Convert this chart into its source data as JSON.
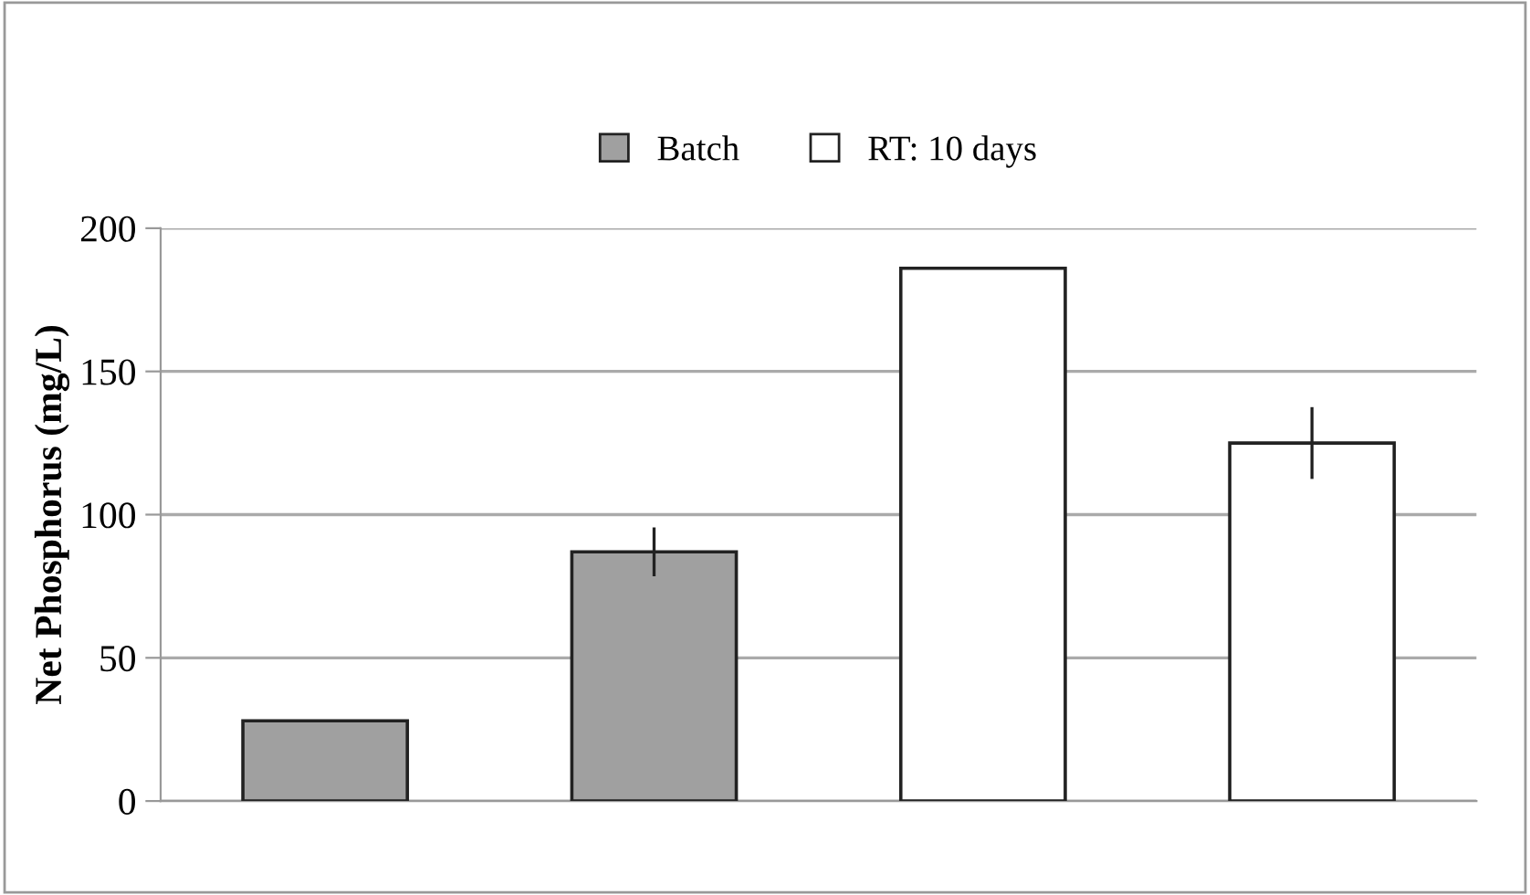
{
  "chart_data": {
    "type": "bar",
    "ylabel": "Net Phosphorus (mg/L)",
    "categories": [
      null,
      null,
      null,
      null
    ],
    "series": [
      {
        "name": "Batch",
        "color": "#a0a0a0",
        "values": [
          28,
          87,
          null,
          null
        ],
        "errors": [
          null,
          8,
          null,
          null
        ]
      },
      {
        "name": "RT: 10 days",
        "color": "#ffffff",
        "values": [
          null,
          null,
          186,
          125
        ],
        "errors": [
          null,
          null,
          null,
          12
        ]
      }
    ],
    "ylim": [
      0,
      200
    ],
    "yticks": [
      0,
      50,
      100,
      150,
      200
    ],
    "grid": "y",
    "legend": "top"
  }
}
